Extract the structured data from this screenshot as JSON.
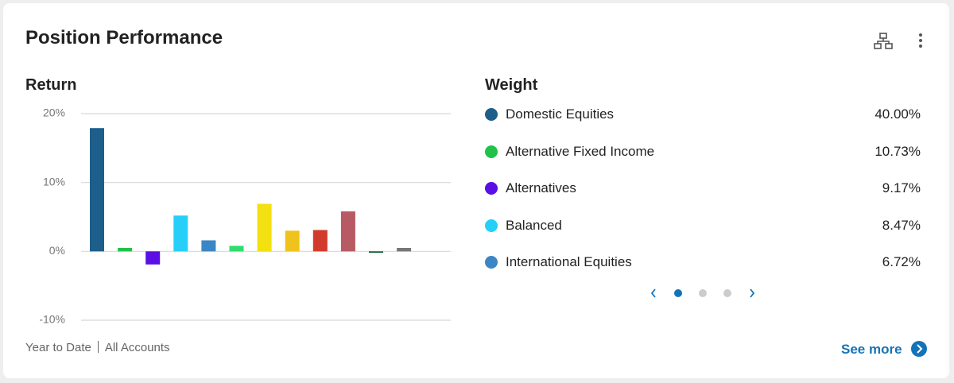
{
  "header": {
    "title": "Position Performance"
  },
  "chart_data": {
    "type": "bar",
    "title": "Return",
    "values": [
      17.9,
      0.5,
      -1.9,
      5.2,
      1.6,
      0.8,
      6.9,
      3.0,
      3.1,
      5.8,
      -0.2,
      0.5
    ],
    "colors": [
      "#1d5f8a",
      "#22c24a",
      "#5a0fe4",
      "#26cff8",
      "#3b86c4",
      "#2fdc6c",
      "#f2e010",
      "#f0c31c",
      "#d23a2b",
      "#b75a63",
      "#0c5a2f",
      "#777777"
    ],
    "ylim": [
      -10,
      20
    ],
    "yticks": [
      {
        "value": -10,
        "label": "-10%"
      },
      {
        "value": 0,
        "label": "0%"
      },
      {
        "value": 10,
        "label": "10%"
      },
      {
        "value": 20,
        "label": "20%"
      }
    ],
    "grid": true
  },
  "footer": {
    "period": "Year to Date",
    "scope": "All Accounts",
    "link": "See more"
  },
  "weight": {
    "title": "Weight",
    "items": [
      {
        "name": "Domestic Equities",
        "color": "#1d5f8a",
        "value": 40.0,
        "label": "40.00%"
      },
      {
        "name": "Alternative Fixed Income",
        "color": "#22c24a",
        "value": 10.73,
        "label": "10.73%"
      },
      {
        "name": "Alternatives",
        "color": "#5a0fe4",
        "value": 9.17,
        "label": "9.17%"
      },
      {
        "name": "Balanced",
        "color": "#26cff8",
        "value": 8.47,
        "label": "8.47%"
      },
      {
        "name": "International Equities",
        "color": "#3b86c4",
        "value": 6.72,
        "label": "6.72%"
      }
    ]
  }
}
